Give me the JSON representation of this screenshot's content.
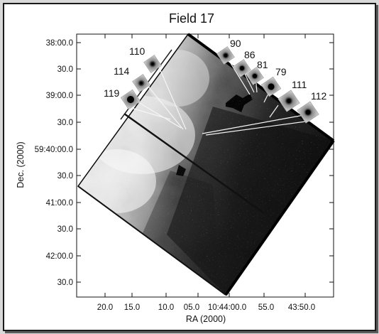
{
  "figure": {
    "title": "Field 17",
    "x_axis": {
      "label": "RA (2000)",
      "ticks": [
        "20.0",
        "15.0",
        "10.0",
        "05.0",
        "10:44:00.0",
        "55.0",
        "43:50.0"
      ]
    },
    "y_axis": {
      "label": "Dec. (2000)",
      "ticks": [
        "38:00.0",
        "30.0",
        "39:00.0",
        "30.0",
        "59:40:00.0",
        "30.0",
        "41:00.0",
        "30.0",
        "42:00.0",
        "30.0"
      ]
    },
    "source_labels": [
      "110",
      "114",
      "119",
      "90",
      "86",
      "81",
      "79",
      "111",
      "112"
    ]
  }
}
